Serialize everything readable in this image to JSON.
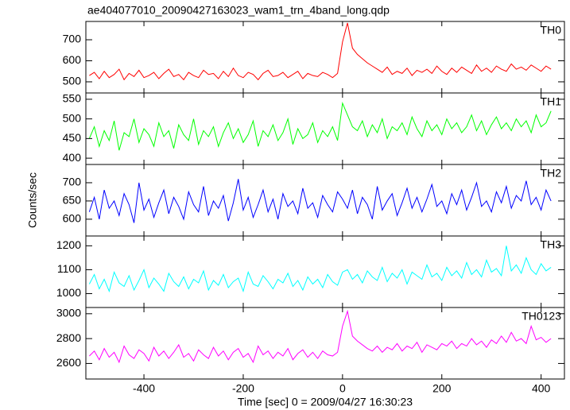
{
  "title": "ae404077010_20090427163023_wam1_trn_4band_long.qdp",
  "xlabel": "Time [sec] 0 = 2009/04/27 16:30:23",
  "ylabel": "Counts/sec",
  "xlim": [
    -517,
    447
  ],
  "xticks": [
    -400,
    -200,
    0,
    200,
    400
  ],
  "x": [
    -510,
    -500,
    -490,
    -480,
    -470,
    -460,
    -450,
    -440,
    -430,
    -420,
    -410,
    -400,
    -390,
    -380,
    -370,
    -360,
    -350,
    -340,
    -330,
    -320,
    -310,
    -300,
    -290,
    -280,
    -270,
    -260,
    -250,
    -240,
    -230,
    -220,
    -210,
    -200,
    -190,
    -180,
    -170,
    -160,
    -150,
    -140,
    -130,
    -120,
    -110,
    -100,
    -90,
    -80,
    -70,
    -60,
    -50,
    -40,
    -30,
    -20,
    -10,
    0,
    10,
    20,
    30,
    40,
    50,
    60,
    70,
    80,
    90,
    100,
    110,
    120,
    130,
    140,
    150,
    160,
    170,
    180,
    190,
    200,
    210,
    220,
    230,
    240,
    250,
    260,
    270,
    280,
    290,
    300,
    310,
    320,
    330,
    340,
    350,
    360,
    370,
    380,
    390,
    400,
    410,
    420
  ],
  "chart_data": [
    {
      "type": "line",
      "label": "TH0",
      "color": "#ff0000",
      "ylim": [
        447,
        787
      ],
      "yticks": [
        500,
        600,
        700
      ],
      "values": [
        530,
        545,
        515,
        550,
        520,
        535,
        560,
        510,
        540,
        525,
        555,
        520,
        530,
        545,
        515,
        540,
        560,
        525,
        535,
        510,
        545,
        530,
        520,
        555,
        535,
        540,
        515,
        550,
        525,
        565,
        530,
        520,
        545,
        535,
        510,
        540,
        555,
        525,
        530,
        545,
        520,
        535,
        550,
        515,
        540,
        530,
        525,
        545,
        535,
        520,
        540,
        690,
        780,
        660,
        630,
        610,
        590,
        575,
        560,
        545,
        570,
        535,
        550,
        540,
        565,
        530,
        555,
        545,
        560,
        540,
        575,
        550,
        535,
        565,
        545,
        570,
        555,
        540,
        580,
        550,
        565,
        545,
        575,
        560,
        550,
        585,
        560,
        570,
        555,
        580,
        565,
        550,
        575,
        560
      ]
    },
    {
      "type": "line",
      "label": "TH1",
      "color": "#00ff00",
      "ylim": [
        384,
        566
      ],
      "yticks": [
        400,
        450,
        500,
        550
      ],
      "values": [
        450,
        480,
        430,
        470,
        445,
        495,
        420,
        465,
        455,
        500,
        440,
        475,
        460,
        430,
        490,
        455,
        470,
        425,
        485,
        460,
        445,
        500,
        435,
        470,
        455,
        480,
        430,
        465,
        490,
        450,
        475,
        440,
        460,
        495,
        430,
        470,
        455,
        485,
        445,
        465,
        500,
        435,
        475,
        450,
        460,
        490,
        440,
        470,
        455,
        480,
        445,
        540,
        510,
        480,
        470,
        495,
        455,
        485,
        465,
        500,
        450,
        480,
        470,
        490,
        460,
        505,
        475,
        455,
        495,
        470,
        485,
        460,
        500,
        475,
        490,
        465,
        480,
        510,
        470,
        495,
        460,
        485,
        505,
        475,
        490,
        470,
        500,
        480,
        495,
        465,
        510,
        480,
        490,
        520
      ]
    },
    {
      "type": "line",
      "label": "TH2",
      "color": "#0000ff",
      "ylim": [
        554,
        750
      ],
      "yticks": [
        600,
        650,
        700
      ],
      "values": [
        620,
        660,
        600,
        680,
        630,
        650,
        610,
        670,
        640,
        590,
        700,
        625,
        655,
        605,
        645,
        680,
        615,
        660,
        635,
        600,
        675,
        640,
        620,
        690,
        610,
        650,
        630,
        665,
        595,
        645,
        710,
        625,
        660,
        605,
        640,
        680,
        620,
        655,
        600,
        670,
        635,
        650,
        615,
        685,
        630,
        645,
        605,
        665,
        640,
        620,
        675,
        655,
        630,
        680,
        615,
        660,
        640,
        600,
        690,
        625,
        650,
        670,
        610,
        645,
        685,
        630,
        660,
        620,
        655,
        695,
        635,
        650,
        615,
        670,
        640,
        680,
        625,
        660,
        700,
        635,
        650,
        620,
        675,
        645,
        690,
        630,
        665,
        650,
        705,
        640,
        660,
        625,
        680,
        650
      ]
    },
    {
      "type": "line",
      "label": "TH3",
      "color": "#00ffff",
      "ylim": [
        942,
        1241
      ],
      "yticks": [
        1000,
        1100,
        1200
      ],
      "values": [
        1040,
        1080,
        1020,
        1060,
        1010,
        1090,
        1045,
        1030,
        1075,
        1015,
        1055,
        1100,
        1025,
        1065,
        1040,
        1010,
        1085,
        1050,
        1030,
        1070,
        1020,
        1060,
        1045,
        1095,
        1015,
        1055,
        1035,
        1080,
        1025,
        1050,
        1065,
        1010,
        1090,
        1040,
        1030,
        1075,
        1050,
        1020,
        1060,
        1045,
        1085,
        1030,
        1055,
        1015,
        1070,
        1040,
        1060,
        1025,
        1080,
        1050,
        1035,
        1090,
        1100,
        1060,
        1080,
        1045,
        1095,
        1070,
        1055,
        1110,
        1050,
        1085,
        1065,
        1100,
        1040,
        1090,
        1075,
        1060,
        1120,
        1070,
        1085,
        1055,
        1110,
        1075,
        1095,
        1065,
        1130,
        1080,
        1100,
        1070,
        1140,
        1090,
        1105,
        1075,
        1200,
        1095,
        1120,
        1085,
        1150,
        1100,
        1080,
        1125,
        1095,
        1110
      ]
    },
    {
      "type": "line",
      "label": "TH0123",
      "color": "#ff00ff",
      "ylim": [
        2475,
        3050
      ],
      "yticks": [
        2600,
        2800,
        3000
      ],
      "values": [
        2660,
        2700,
        2630,
        2720,
        2650,
        2690,
        2610,
        2740,
        2670,
        2640,
        2710,
        2680,
        2620,
        2730,
        2660,
        2700,
        2640,
        2690,
        2750,
        2650,
        2680,
        2620,
        2710,
        2670,
        2640,
        2730,
        2660,
        2700,
        2630,
        2690,
        2720,
        2650,
        2680,
        2610,
        2740,
        2670,
        2700,
        2640,
        2690,
        2660,
        2720,
        2630,
        2680,
        2710,
        2650,
        2690,
        2640,
        2700,
        2670,
        2660,
        2690,
        2900,
        3020,
        2820,
        2780,
        2750,
        2720,
        2700,
        2740,
        2690,
        2730,
        2710,
        2760,
        2700,
        2740,
        2720,
        2770,
        2690,
        2750,
        2730,
        2710,
        2760,
        2740,
        2780,
        2720,
        2760,
        2740,
        2800,
        2750,
        2780,
        2730,
        2790,
        2760,
        2820,
        2770,
        2850,
        2780,
        2800,
        2760,
        2900,
        2790,
        2810,
        2770,
        2800
      ]
    }
  ]
}
